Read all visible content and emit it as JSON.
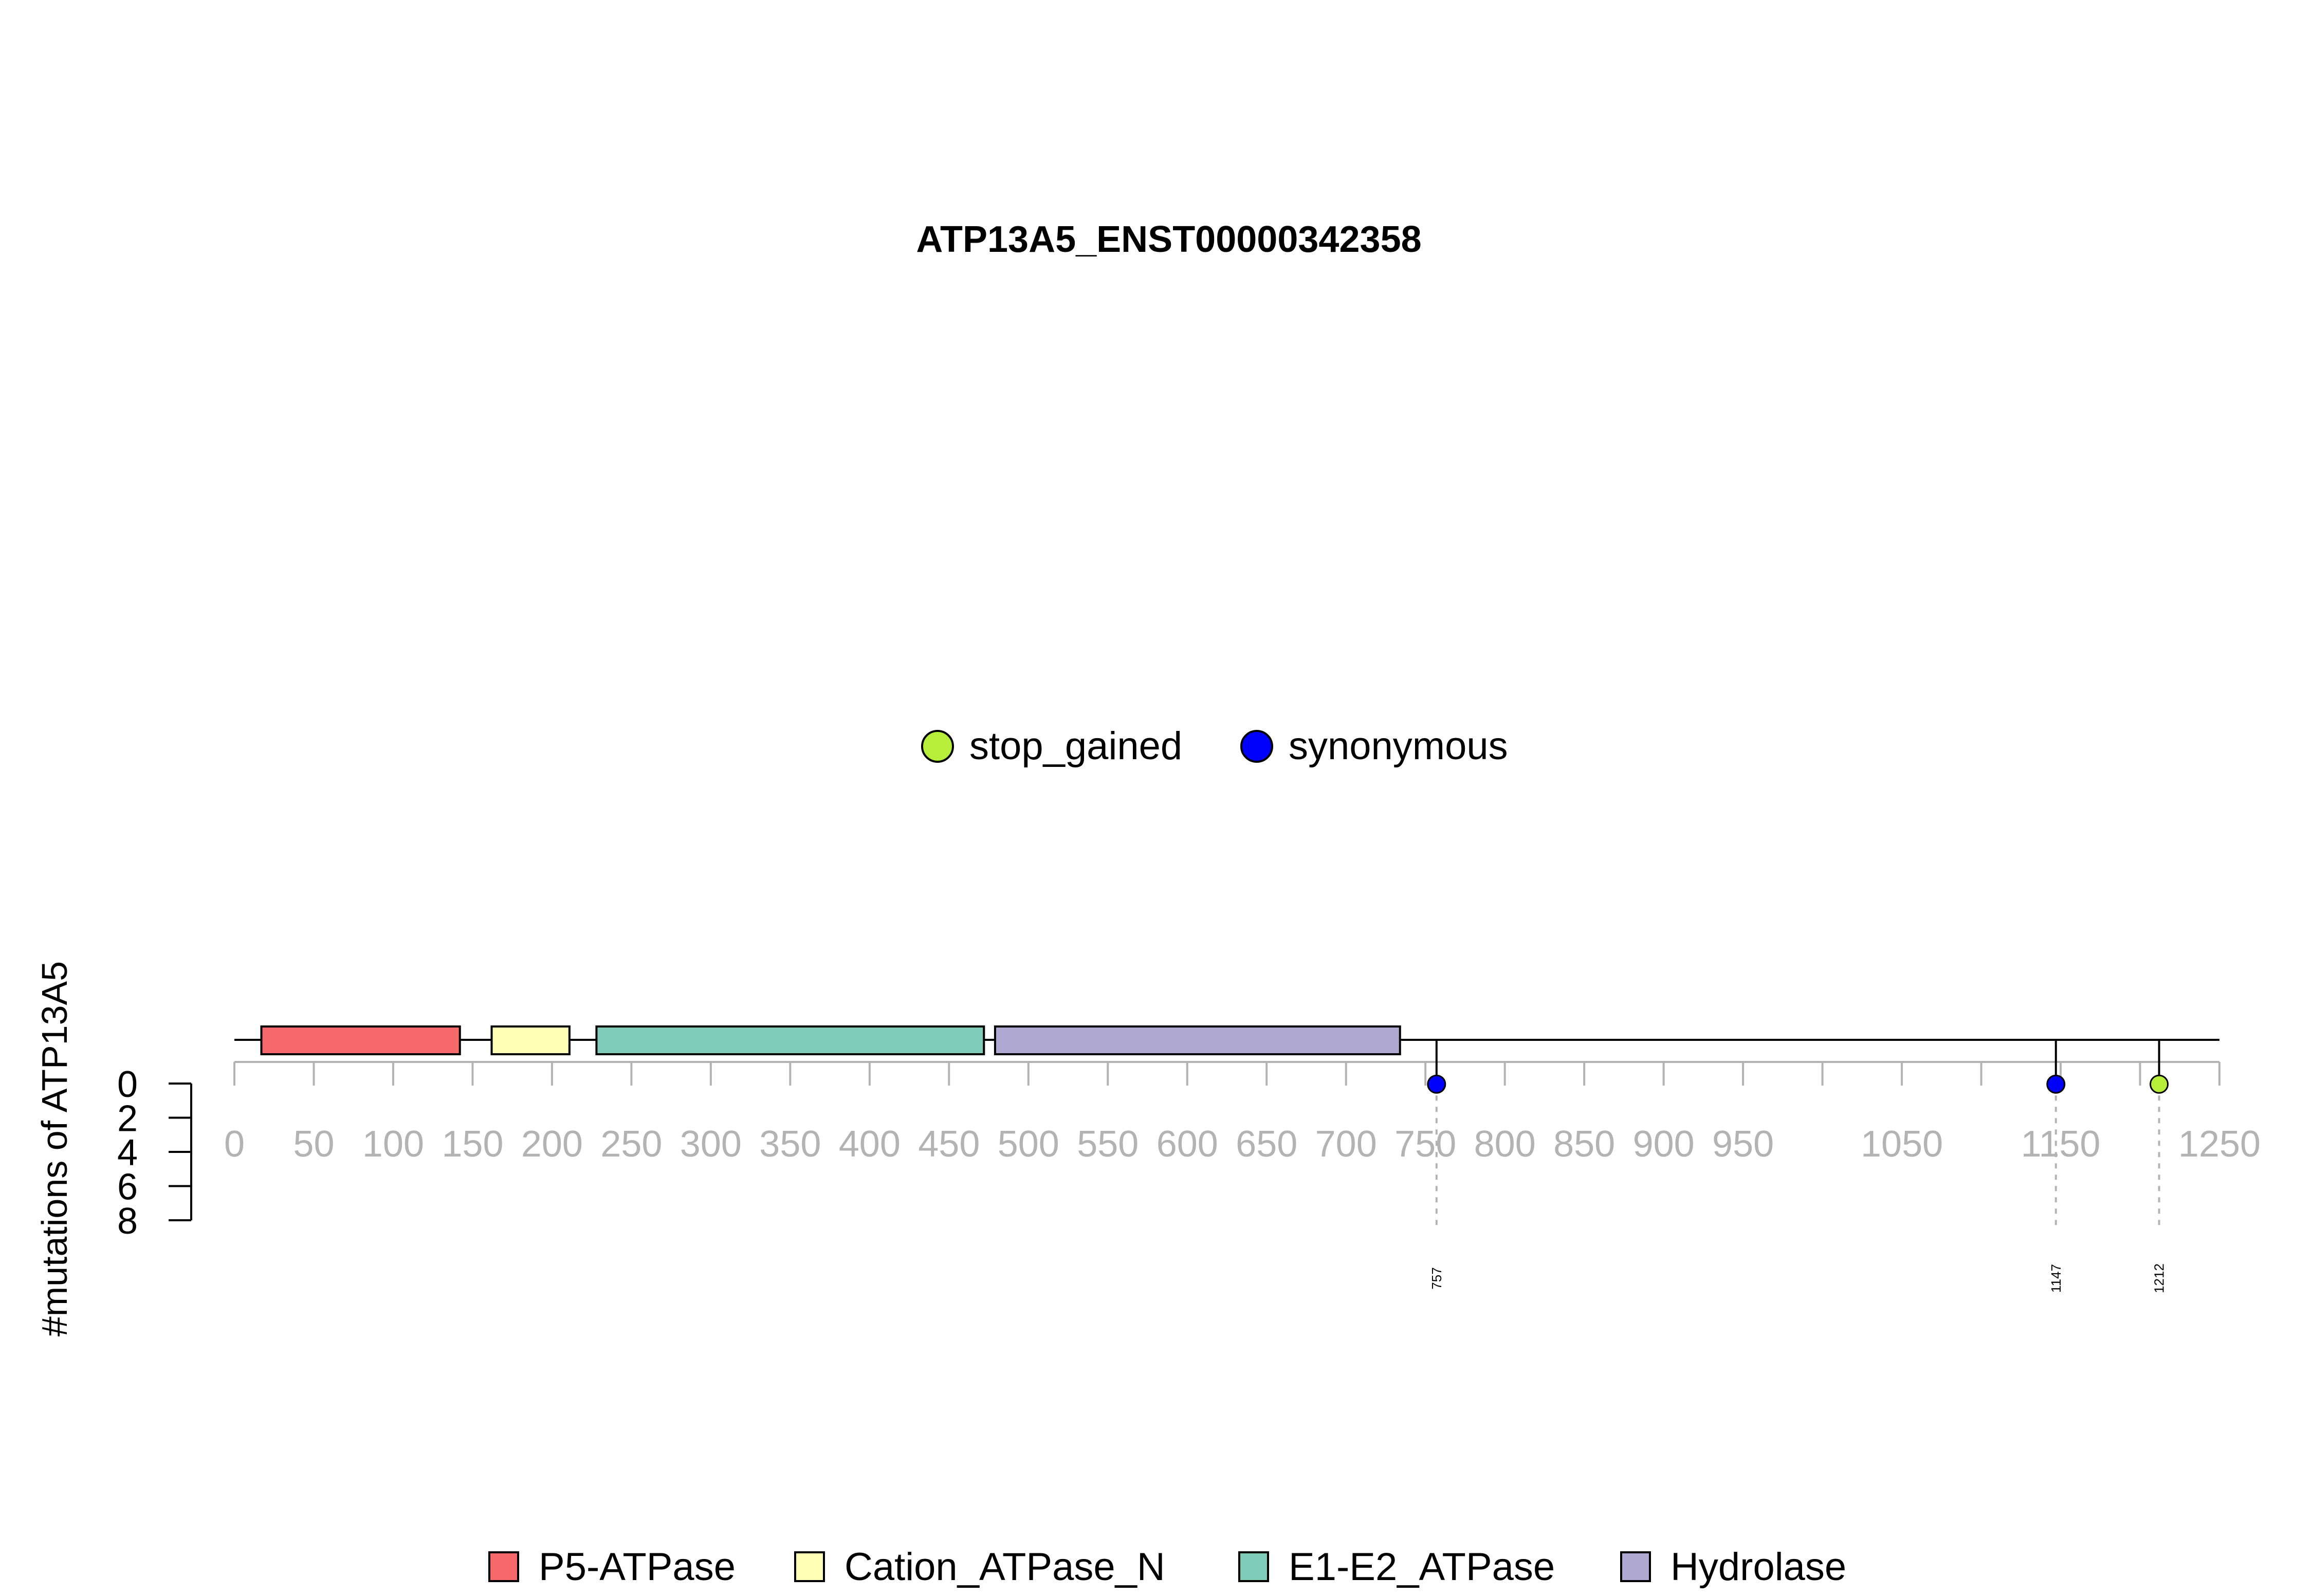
{
  "chart_data": {
    "type": "lollipop",
    "title": "ATP13A5_ENST00000342358",
    "ylabel": "#mutations of ATP13A5",
    "xlim": [
      0,
      1250
    ],
    "x_ticks": [
      0,
      50,
      100,
      150,
      200,
      250,
      300,
      350,
      400,
      450,
      500,
      550,
      600,
      650,
      700,
      750,
      800,
      850,
      900,
      950,
      1000,
      1050,
      1100,
      1150,
      1200,
      1250
    ],
    "x_tick_labels": [
      {
        "value": 0,
        "label": "0"
      },
      {
        "value": 50,
        "label": "50"
      },
      {
        "value": 100,
        "label": "100"
      },
      {
        "value": 150,
        "label": "150"
      },
      {
        "value": 200,
        "label": "200"
      },
      {
        "value": 250,
        "label": "250"
      },
      {
        "value": 300,
        "label": "300"
      },
      {
        "value": 350,
        "label": "350"
      },
      {
        "value": 400,
        "label": "400"
      },
      {
        "value": 450,
        "label": "450"
      },
      {
        "value": 500,
        "label": "500"
      },
      {
        "value": 550,
        "label": "550"
      },
      {
        "value": 600,
        "label": "600"
      },
      {
        "value": 650,
        "label": "650"
      },
      {
        "value": 700,
        "label": "700"
      },
      {
        "value": 750,
        "label": "750"
      },
      {
        "value": 800,
        "label": "800"
      },
      {
        "value": 850,
        "label": "850"
      },
      {
        "value": 900,
        "label": "900"
      },
      {
        "value": 950,
        "label": "950"
      },
      {
        "value": 1050,
        "label": "1050"
      },
      {
        "value": 1150,
        "label": "1150"
      },
      {
        "value": 1250,
        "label": "1250"
      }
    ],
    "y_ticks": [
      0,
      2,
      4,
      6,
      8
    ],
    "ylim": [
      0,
      8
    ],
    "domains": [
      {
        "name": "P5-ATPase",
        "start": 17,
        "end": 142,
        "color": "#F8696B"
      },
      {
        "name": "Cation_ATPase_N",
        "start": 162,
        "end": 211,
        "color": "#FFFFB3"
      },
      {
        "name": "E1-E2_ATPase",
        "start": 228,
        "end": 472,
        "color": "#7ECBB8"
      },
      {
        "name": "Hydrolase",
        "start": 479,
        "end": 734,
        "color": "#B0A9D2"
      }
    ],
    "mutations": [
      {
        "position": 757,
        "label": "757",
        "type": "synonymous",
        "count": 1
      },
      {
        "position": 1147,
        "label": "1147",
        "type": "synonymous",
        "count": 1
      },
      {
        "position": 1212,
        "label": "1212",
        "type": "stop_gained",
        "count": 1
      }
    ],
    "mutation_legend": [
      {
        "name": "stop_gained",
        "color": "#B7EE3A"
      },
      {
        "name": "synonymous",
        "color": "#0000FF"
      }
    ],
    "domain_legend_placement": "bottom",
    "mutation_legend_placement": "top-center"
  }
}
